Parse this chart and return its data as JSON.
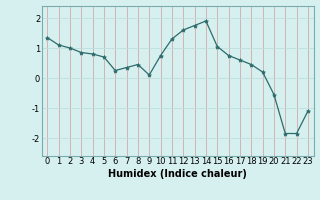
{
  "x": [
    0,
    1,
    2,
    3,
    4,
    5,
    6,
    7,
    8,
    9,
    10,
    11,
    12,
    13,
    14,
    15,
    16,
    17,
    18,
    19,
    20,
    21,
    22,
    23
  ],
  "y": [
    1.35,
    1.1,
    1.0,
    0.85,
    0.8,
    0.7,
    0.25,
    0.35,
    0.45,
    0.1,
    0.75,
    1.3,
    1.6,
    1.75,
    1.9,
    1.05,
    0.75,
    0.6,
    0.45,
    0.2,
    -0.55,
    -1.85,
    -1.85,
    -1.1
  ],
  "line_color": "#2e6b6b",
  "marker": "*",
  "marker_size": 3,
  "bg_color": "#d6f0f0",
  "grid_color": "#c0dede",
  "grid_red": "#d8b0b0",
  "xlabel": "Humidex (Indice chaleur)",
  "xlabel_fontsize": 7,
  "tick_fontsize": 6,
  "ylim": [
    -2.6,
    2.4
  ],
  "xlim": [
    -0.5,
    23.5
  ],
  "yticks": [
    -2,
    -1,
    0,
    1,
    2
  ],
  "xticks": [
    0,
    1,
    2,
    3,
    4,
    5,
    6,
    7,
    8,
    9,
    10,
    11,
    12,
    13,
    14,
    15,
    16,
    17,
    18,
    19,
    20,
    21,
    22,
    23
  ]
}
